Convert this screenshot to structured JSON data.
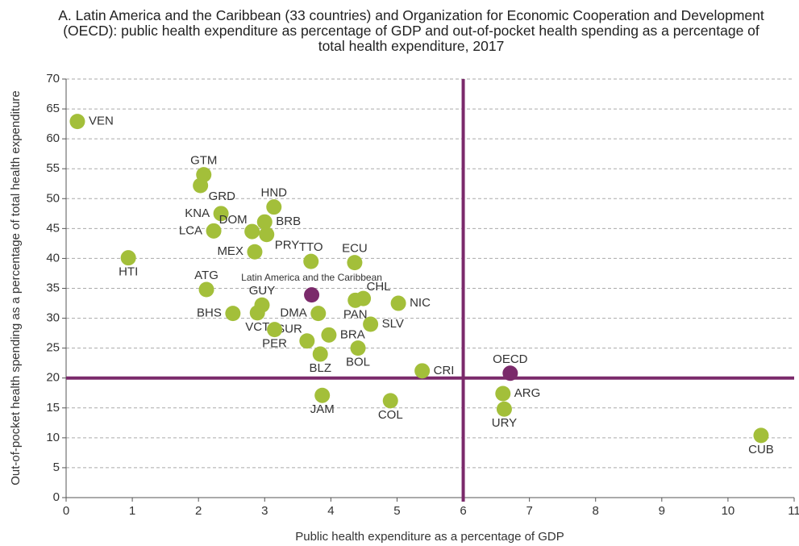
{
  "chart_data": {
    "type": "scatter",
    "title": "A. Latin America and the Caribbean (33 countries) and Organization for Economic Cooperation and Development (OECD): public health expenditure as percentage of GDP and out-of-pocket health spending as a percentage of total health expenditure, 2017",
    "x_label": "Public health expenditure as a percentage of GDP",
    "y_label": "Out-of-pocket health spending as a percentage of total health expenditure",
    "xlim": [
      0,
      11
    ],
    "xticks": [
      0,
      1,
      2,
      3,
      4,
      5,
      6,
      7,
      8,
      9,
      10,
      11
    ],
    "ylim": [
      0,
      70
    ],
    "yticks": [
      0,
      5,
      10,
      15,
      20,
      25,
      30,
      35,
      40,
      45,
      50,
      55,
      60,
      65,
      70
    ],
    "grid": true,
    "vline": 6,
    "hline": 20,
    "reference_color": "#7b2a6b",
    "series": [
      {
        "color": "#a3bf3a",
        "labels": [
          "VEN",
          "HTI",
          "GTM",
          "GRD",
          "KNA",
          "DOM",
          "LCA",
          "HND",
          "BRB",
          "PRY",
          "MEX",
          "TTO",
          "ECU",
          "ATG",
          "GUY",
          "CHL",
          "PAN",
          "NIC",
          "BHS",
          "VCT",
          "DMA",
          "SLV",
          "SUR",
          "BRA",
          "PER",
          "BLZ",
          "BOL",
          "CRI",
          "ARG",
          "URY",
          "JAM",
          "COL",
          "CUB"
        ],
        "x": [
          0.17,
          0.94,
          2.08,
          2.03,
          2.34,
          2.81,
          2.23,
          3.14,
          3.0,
          3.03,
          2.85,
          3.7,
          4.36,
          2.12,
          2.96,
          4.49,
          4.37,
          5.02,
          2.52,
          2.89,
          3.81,
          4.6,
          3.64,
          3.97,
          3.15,
          3.84,
          4.41,
          5.38,
          6.6,
          6.62,
          3.87,
          4.9,
          10.5
        ],
        "values": [
          62.9,
          40.1,
          54.0,
          52.2,
          47.5,
          44.5,
          44.6,
          48.6,
          46.1,
          44.0,
          41.1,
          39.5,
          39.3,
          34.8,
          32.2,
          33.3,
          33.0,
          32.5,
          30.8,
          30.9,
          30.8,
          29.0,
          26.2,
          27.2,
          28.1,
          24.0,
          25.0,
          21.2,
          17.4,
          14.8,
          17.1,
          16.2,
          10.4
        ]
      },
      {
        "color": "#7b2a6b",
        "labels": [
          "Latin America and the Caribbean",
          "OECD"
        ],
        "x": [
          3.71,
          6.71
        ],
        "values": [
          33.9,
          20.8
        ]
      }
    ]
  }
}
